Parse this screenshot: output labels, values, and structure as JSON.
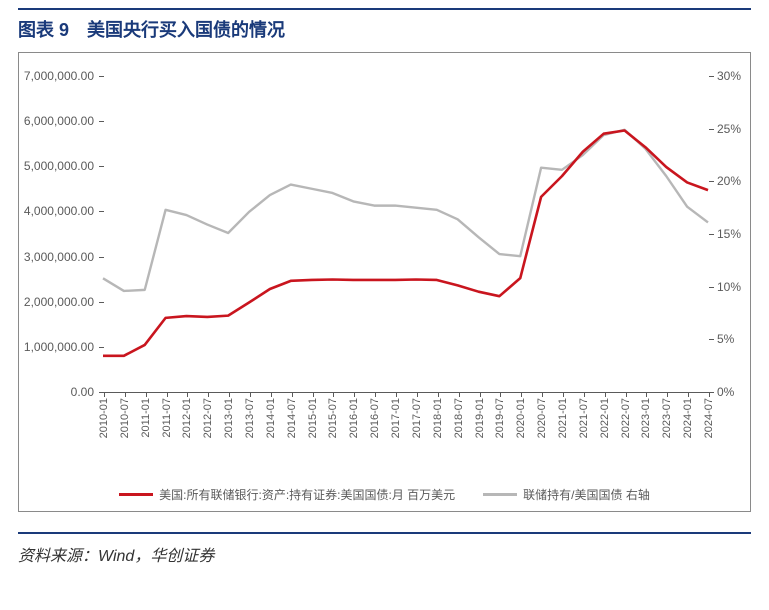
{
  "title": {
    "prefix": "图表 9",
    "text": "美国央行买入国债的情况"
  },
  "source": "资料来源：Wind，华创证券",
  "chart": {
    "type": "line-dual-axis",
    "background_color": "#ffffff",
    "border_color": "#8a8a8a",
    "axis_color": "#5a5a5a",
    "font_size_axis": 12,
    "x_labels": [
      "2010-01",
      "2010-07",
      "2011-01",
      "2011-07",
      "2012-01",
      "2012-07",
      "2013-01",
      "2013-07",
      "2014-01",
      "2014-07",
      "2015-01",
      "2015-07",
      "2016-01",
      "2016-07",
      "2017-01",
      "2017-07",
      "2018-01",
      "2018-07",
      "2019-01",
      "2019-07",
      "2020-01",
      "2020-07",
      "2021-01",
      "2021-07",
      "2022-01",
      "2022-07",
      "2023-01",
      "2023-07",
      "2024-01",
      "2024-07"
    ],
    "y_left": {
      "min": 0,
      "max": 7000000,
      "ticks": [
        0,
        1000000,
        2000000,
        3000000,
        4000000,
        5000000,
        6000000,
        7000000
      ],
      "tick_labels": [
        "0.00",
        "1,000,000.00",
        "2,000,000.00",
        "3,000,000.00",
        "4,000,000.00",
        "5,000,000.00",
        "6,000,000.00",
        "7,000,000.00"
      ]
    },
    "y_right": {
      "min": 0,
      "max": 0.3,
      "ticks": [
        0,
        0.05,
        0.1,
        0.15,
        0.2,
        0.25,
        0.3
      ],
      "tick_labels": [
        "0%",
        "5%",
        "10%",
        "15%",
        "20%",
        "25%",
        "30%"
      ]
    },
    "series": [
      {
        "name": "美国:所有联储银行:资产:持有证券:美国国债:月 百万美元",
        "axis": "left",
        "color": "#c9151e",
        "line_width": 2.6,
        "data": [
          780000,
          780000,
          1020000,
          1620000,
          1660000,
          1640000,
          1670000,
          1960000,
          2260000,
          2440000,
          2460000,
          2470000,
          2460000,
          2460000,
          2460000,
          2470000,
          2460000,
          2340000,
          2200000,
          2100000,
          2500000,
          4300000,
          4760000,
          5300000,
          5700000,
          5770000,
          5400000,
          4960000,
          4620000,
          4450000
        ]
      },
      {
        "name": "联储持有/美国国债 右轴",
        "axis": "right",
        "color": "#b7b7b7",
        "line_width": 2.4,
        "data": [
          0.107,
          0.095,
          0.096,
          0.172,
          0.167,
          0.158,
          0.15,
          0.17,
          0.186,
          0.196,
          0.192,
          0.188,
          0.18,
          0.176,
          0.176,
          0.174,
          0.172,
          0.163,
          0.146,
          0.13,
          0.128,
          0.212,
          0.21,
          0.224,
          0.243,
          0.248,
          0.23,
          0.204,
          0.175,
          0.16
        ]
      }
    ],
    "legend_position": "bottom-center"
  }
}
